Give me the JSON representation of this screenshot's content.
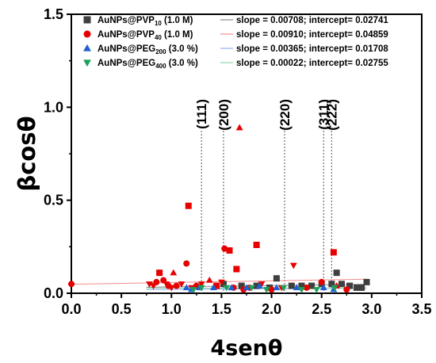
{
  "chart_data": {
    "type": "scatter",
    "xlabel": "4senθ",
    "ylabel": "βcosθ",
    "xlim": [
      0,
      3.5
    ],
    "ylim": [
      0,
      1.5
    ],
    "x_ticks": [
      "0.0",
      "0.5",
      "1.0",
      "1.5",
      "2.0",
      "2.5",
      "3.0",
      "3.5"
    ],
    "y_ticks": [
      "0.0",
      "0.5",
      "1.0",
      "1.5"
    ],
    "grid": false,
    "legend_position": "top-right",
    "series": [
      {
        "name": "AuNPs@PVP10 (1.0 M)",
        "name_main": "AuNPs@PVP",
        "name_sub": "10",
        "name_tail": " (1.0 M)",
        "marker": "square",
        "color": "#3f3f3f",
        "fit_color": "#8c8c8c",
        "fit_text": "slope = 0.00708; intercept= 0.02741",
        "slope": 0.00708,
        "intercept": 0.02741,
        "points": [
          [
            1.52,
            0.05
          ],
          [
            1.7,
            0.04
          ],
          [
            1.85,
            0.04
          ],
          [
            1.98,
            0.03
          ],
          [
            2.05,
            0.08
          ],
          [
            2.2,
            0.04
          ],
          [
            2.3,
            0.04
          ],
          [
            2.4,
            0.04
          ],
          [
            2.5,
            0.05
          ],
          [
            2.6,
            0.05
          ],
          [
            2.65,
            0.11
          ],
          [
            2.7,
            0.05
          ],
          [
            2.78,
            0.04
          ],
          [
            2.85,
            0.03
          ],
          [
            2.9,
            0.03
          ],
          [
            2.95,
            0.06
          ]
        ]
      },
      {
        "name": "AuNPs@PVP40 (1.0 M)",
        "name_main": "AuNPs@PVP",
        "name_sub": "40",
        "name_tail": " (1.0 M)",
        "marker": "mixed",
        "color": "#e60000",
        "fit_color": "#f28c8c",
        "fit_text": "slope = 0.00910; intercept= 0.04859",
        "slope": 0.0091,
        "intercept": 0.04859,
        "points": [
          {
            "x": 0.0,
            "y": 0.05,
            "m": "circle"
          },
          {
            "x": 0.78,
            "y": 0.05,
            "m": "triangle-down"
          },
          {
            "x": 0.82,
            "y": 0.04,
            "m": "triangle-down"
          },
          {
            "x": 0.85,
            "y": 0.06,
            "m": "circle"
          },
          {
            "x": 0.88,
            "y": 0.11,
            "m": "square"
          },
          {
            "x": 0.92,
            "y": 0.07,
            "m": "circle"
          },
          {
            "x": 0.95,
            "y": 0.05,
            "m": "triangle-down"
          },
          {
            "x": 0.97,
            "y": 0.04,
            "m": "circle"
          },
          {
            "x": 1.0,
            "y": 0.03,
            "m": "triangle-down"
          },
          {
            "x": 1.02,
            "y": 0.11,
            "m": "triangle"
          },
          {
            "x": 1.05,
            "y": 0.04,
            "m": "circle"
          },
          {
            "x": 1.1,
            "y": 0.05,
            "m": "triangle-down"
          },
          {
            "x": 1.15,
            "y": 0.16,
            "m": "circle"
          },
          {
            "x": 1.17,
            "y": 0.47,
            "m": "square"
          },
          {
            "x": 1.2,
            "y": 0.03,
            "m": "triangle-down"
          },
          {
            "x": 1.25,
            "y": 0.04,
            "m": "circle"
          },
          {
            "x": 1.3,
            "y": 0.05,
            "m": "triangle-down"
          },
          {
            "x": 1.38,
            "y": 0.07,
            "m": "triangle"
          },
          {
            "x": 1.45,
            "y": 0.04,
            "m": "square"
          },
          {
            "x": 1.5,
            "y": 0.06,
            "m": "triangle-down"
          },
          {
            "x": 1.53,
            "y": 0.24,
            "m": "circle"
          },
          {
            "x": 1.58,
            "y": 0.23,
            "m": "square"
          },
          {
            "x": 1.62,
            "y": 0.03,
            "m": "circle"
          },
          {
            "x": 1.65,
            "y": 0.13,
            "m": "square"
          },
          {
            "x": 1.68,
            "y": 0.89,
            "m": "triangle"
          },
          {
            "x": 1.72,
            "y": 0.02,
            "m": "circle"
          },
          {
            "x": 1.78,
            "y": 0.03,
            "m": "circle"
          },
          {
            "x": 1.85,
            "y": 0.26,
            "m": "square"
          },
          {
            "x": 1.9,
            "y": 0.05,
            "m": "triangle-down"
          },
          {
            "x": 2.0,
            "y": 0.02,
            "m": "circle"
          },
          {
            "x": 2.1,
            "y": 0.03,
            "m": "triangle-down"
          },
          {
            "x": 2.22,
            "y": 0.15,
            "m": "triangle-down"
          },
          {
            "x": 2.35,
            "y": 0.03,
            "m": "circle"
          },
          {
            "x": 2.5,
            "y": 0.06,
            "m": "circle"
          },
          {
            "x": 2.62,
            "y": 0.22,
            "m": "square"
          },
          {
            "x": 2.65,
            "y": 0.04,
            "m": "triangle"
          },
          {
            "x": 2.75,
            "y": 0.02,
            "m": "circle"
          }
        ]
      },
      {
        "name": "AuNPs@PEG200 (3.0 %)",
        "name_main": "AuNPs@PEG",
        "name_sub": "200",
        "name_tail": " (3.0 %)",
        "marker": "triangle",
        "color": "#1f5fd0",
        "fit_color": "#8fb2ee",
        "fit_text": "slope = 0.00365; intercept= 0.01708",
        "slope": 0.00365,
        "intercept": 0.01708,
        "points": [
          [
            1.15,
            0.03
          ],
          [
            1.2,
            0.02
          ],
          [
            1.28,
            0.03
          ],
          [
            1.42,
            0.03
          ],
          [
            1.6,
            0.03
          ],
          [
            1.75,
            0.03
          ],
          [
            1.88,
            0.04
          ],
          [
            2.05,
            0.03
          ],
          [
            2.25,
            0.03
          ],
          [
            2.52,
            0.03
          ],
          [
            2.62,
            0.02
          ]
        ]
      },
      {
        "name": "AuNPs@PEG400 (3.0 %)",
        "name_main": "AuNPs@PEG",
        "name_sub": "400",
        "name_tail": " (3.0 %)",
        "marker": "triangle-down",
        "color": "#1fa05a",
        "fit_color": "#8fd4ad",
        "fit_text": "slope = 0.00022; intercept= 0.02755",
        "slope": 0.00022,
        "intercept": 0.02755,
        "points": [
          [
            1.22,
            0.02
          ],
          [
            1.3,
            0.03
          ],
          [
            1.55,
            0.03
          ],
          [
            1.8,
            0.03
          ],
          [
            1.95,
            0.02
          ],
          [
            2.12,
            0.03
          ],
          [
            2.3,
            0.02
          ],
          [
            2.45,
            0.02
          ],
          [
            2.63,
            0.03
          ]
        ]
      }
    ],
    "annotations": [
      {
        "label": "(111)",
        "x": 1.3
      },
      {
        "label": "(200)",
        "x": 1.52
      },
      {
        "label": "(220)",
        "x": 2.13
      },
      {
        "label": "(311)",
        "x": 2.52
      },
      {
        "label": "(222)",
        "x": 2.6
      }
    ]
  }
}
